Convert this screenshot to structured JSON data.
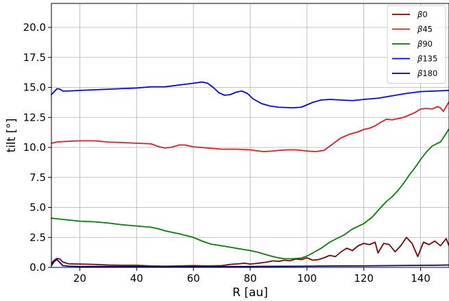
{
  "chart_data": {
    "type": "line",
    "xlabel": "R [au]",
    "ylabel": "tilt [°]",
    "xlim": [
      10,
      150
    ],
    "ylim": [
      0,
      22
    ],
    "xticks": [
      20,
      40,
      60,
      80,
      100,
      120,
      140
    ],
    "xtick_labels": [
      "20",
      "40",
      "60",
      "80",
      "100",
      "120",
      "140"
    ],
    "yticks": [
      0,
      2.5,
      5,
      7.5,
      10,
      12.5,
      15,
      17.5,
      20
    ],
    "ytick_labels": [
      "0.0",
      "2.5",
      "5.0",
      "7.5",
      "10.0",
      "12.5",
      "15.0",
      "17.5",
      "20.0"
    ],
    "grid": true,
    "legend_position": "top-right",
    "series": [
      {
        "name": "β0",
        "color": "#800000",
        "points": [
          [
            10,
            0.35
          ],
          [
            11,
            0.6
          ],
          [
            12,
            0.75
          ],
          [
            13,
            0.7
          ],
          [
            14,
            0.45
          ],
          [
            16,
            0.3
          ],
          [
            20,
            0.28
          ],
          [
            25,
            0.25
          ],
          [
            30,
            0.2
          ],
          [
            35,
            0.18
          ],
          [
            40,
            0.18
          ],
          [
            45,
            0.12
          ],
          [
            50,
            0.1
          ],
          [
            55,
            0.12
          ],
          [
            60,
            0.15
          ],
          [
            65,
            0.12
          ],
          [
            70,
            0.15
          ],
          [
            73,
            0.25
          ],
          [
            76,
            0.3
          ],
          [
            78,
            0.35
          ],
          [
            80,
            0.28
          ],
          [
            83,
            0.35
          ],
          [
            86,
            0.45
          ],
          [
            88,
            0.55
          ],
          [
            90,
            0.5
          ],
          [
            92,
            0.6
          ],
          [
            94,
            0.55
          ],
          [
            96,
            0.7
          ],
          [
            98,
            0.65
          ],
          [
            100,
            0.8
          ],
          [
            102,
            0.6
          ],
          [
            104,
            0.65
          ],
          [
            106,
            0.8
          ],
          [
            108,
            1.0
          ],
          [
            110,
            0.9
          ],
          [
            112,
            1.3
          ],
          [
            114,
            1.6
          ],
          [
            116,
            1.4
          ],
          [
            118,
            1.8
          ],
          [
            120,
            2.0
          ],
          [
            122,
            1.9
          ],
          [
            124,
            2.1
          ],
          [
            125,
            1.2
          ],
          [
            127,
            2.0
          ],
          [
            129,
            1.9
          ],
          [
            131,
            1.3
          ],
          [
            133,
            1.8
          ],
          [
            135,
            2.5
          ],
          [
            137,
            2.0
          ],
          [
            139,
            0.9
          ],
          [
            141,
            2.1
          ],
          [
            143,
            1.9
          ],
          [
            145,
            2.2
          ],
          [
            147,
            1.8
          ],
          [
            149,
            2.4
          ],
          [
            150,
            1.8
          ]
        ]
      },
      {
        "name": "β45",
        "color": "#e41a1c",
        "points": [
          [
            10,
            10.35
          ],
          [
            12,
            10.45
          ],
          [
            15,
            10.5
          ],
          [
            20,
            10.55
          ],
          [
            25,
            10.55
          ],
          [
            30,
            10.45
          ],
          [
            35,
            10.4
          ],
          [
            40,
            10.35
          ],
          [
            45,
            10.3
          ],
          [
            48,
            10.05
          ],
          [
            50,
            9.95
          ],
          [
            52,
            10.0
          ],
          [
            55,
            10.2
          ],
          [
            57,
            10.2
          ],
          [
            60,
            10.05
          ],
          [
            65,
            9.95
          ],
          [
            70,
            9.85
          ],
          [
            75,
            9.85
          ],
          [
            80,
            9.8
          ],
          [
            83,
            9.7
          ],
          [
            85,
            9.65
          ],
          [
            88,
            9.7
          ],
          [
            90,
            9.75
          ],
          [
            93,
            9.8
          ],
          [
            96,
            9.8
          ],
          [
            98,
            9.75
          ],
          [
            100,
            9.7
          ],
          [
            103,
            9.65
          ],
          [
            106,
            9.75
          ],
          [
            108,
            10.1
          ],
          [
            110,
            10.45
          ],
          [
            112,
            10.8
          ],
          [
            115,
            11.1
          ],
          [
            118,
            11.3
          ],
          [
            120,
            11.5
          ],
          [
            122,
            11.6
          ],
          [
            124,
            11.8
          ],
          [
            126,
            12.1
          ],
          [
            128,
            12.35
          ],
          [
            130,
            12.3
          ],
          [
            132,
            12.4
          ],
          [
            134,
            12.5
          ],
          [
            136,
            12.7
          ],
          [
            138,
            12.9
          ],
          [
            140,
            13.2
          ],
          [
            142,
            13.25
          ],
          [
            144,
            13.2
          ],
          [
            146,
            13.4
          ],
          [
            147,
            13.3
          ],
          [
            148,
            13.0
          ],
          [
            150,
            13.8
          ]
        ]
      },
      {
        "name": "β90",
        "color": "#008000",
        "points": [
          [
            10,
            4.1
          ],
          [
            12,
            4.05
          ],
          [
            14,
            4.0
          ],
          [
            16,
            3.95
          ],
          [
            18,
            3.9
          ],
          [
            20,
            3.85
          ],
          [
            25,
            3.8
          ],
          [
            30,
            3.7
          ],
          [
            35,
            3.55
          ],
          [
            40,
            3.45
          ],
          [
            45,
            3.35
          ],
          [
            48,
            3.2
          ],
          [
            50,
            3.05
          ],
          [
            55,
            2.8
          ],
          [
            60,
            2.5
          ],
          [
            63,
            2.2
          ],
          [
            66,
            1.95
          ],
          [
            70,
            1.8
          ],
          [
            75,
            1.6
          ],
          [
            80,
            1.4
          ],
          [
            83,
            1.25
          ],
          [
            85,
            1.1
          ],
          [
            88,
            0.9
          ],
          [
            90,
            0.8
          ],
          [
            92,
            0.72
          ],
          [
            95,
            0.72
          ],
          [
            98,
            0.78
          ],
          [
            100,
            0.95
          ],
          [
            102,
            1.2
          ],
          [
            105,
            1.6
          ],
          [
            108,
            2.1
          ],
          [
            110,
            2.35
          ],
          [
            113,
            2.7
          ],
          [
            116,
            3.2
          ],
          [
            120,
            3.65
          ],
          [
            123,
            4.2
          ],
          [
            126,
            5.0
          ],
          [
            128,
            5.5
          ],
          [
            130,
            5.9
          ],
          [
            132,
            6.4
          ],
          [
            134,
            7.0
          ],
          [
            136,
            7.7
          ],
          [
            138,
            8.3
          ],
          [
            140,
            9.0
          ],
          [
            142,
            9.6
          ],
          [
            144,
            10.1
          ],
          [
            146,
            10.35
          ],
          [
            147,
            10.45
          ],
          [
            148,
            10.8
          ],
          [
            150,
            11.55
          ]
        ]
      },
      {
        "name": "β135",
        "color": "#0000ff",
        "points": [
          [
            10,
            14.4
          ],
          [
            11,
            14.65
          ],
          [
            12,
            14.9
          ],
          [
            13,
            14.85
          ],
          [
            14,
            14.7
          ],
          [
            16,
            14.7
          ],
          [
            20,
            14.75
          ],
          [
            25,
            14.8
          ],
          [
            30,
            14.85
          ],
          [
            35,
            14.9
          ],
          [
            40,
            14.95
          ],
          [
            45,
            15.05
          ],
          [
            50,
            15.05
          ],
          [
            55,
            15.2
          ],
          [
            60,
            15.35
          ],
          [
            63,
            15.45
          ],
          [
            65,
            15.35
          ],
          [
            67,
            15.0
          ],
          [
            69,
            14.55
          ],
          [
            71,
            14.35
          ],
          [
            73,
            14.4
          ],
          [
            75,
            14.6
          ],
          [
            77,
            14.7
          ],
          [
            79,
            14.5
          ],
          [
            81,
            14.05
          ],
          [
            84,
            13.65
          ],
          [
            87,
            13.45
          ],
          [
            90,
            13.35
          ],
          [
            95,
            13.3
          ],
          [
            98,
            13.35
          ],
          [
            100,
            13.55
          ],
          [
            102,
            13.75
          ],
          [
            105,
            13.95
          ],
          [
            108,
            14.0
          ],
          [
            112,
            13.95
          ],
          [
            116,
            13.9
          ],
          [
            120,
            14.0
          ],
          [
            125,
            14.1
          ],
          [
            130,
            14.3
          ],
          [
            135,
            14.5
          ],
          [
            140,
            14.65
          ],
          [
            145,
            14.7
          ],
          [
            150,
            14.75
          ]
        ]
      },
      {
        "name": "β180",
        "color": "#00008b",
        "points": [
          [
            10,
            0.15
          ],
          [
            11,
            0.5
          ],
          [
            12,
            0.65
          ],
          [
            13,
            0.4
          ],
          [
            14,
            0.15
          ],
          [
            16,
            0.1
          ],
          [
            20,
            0.08
          ],
          [
            30,
            0.08
          ],
          [
            40,
            0.07
          ],
          [
            50,
            0.06
          ],
          [
            60,
            0.06
          ],
          [
            70,
            0.07
          ],
          [
            80,
            0.08
          ],
          [
            90,
            0.09
          ],
          [
            100,
            0.1
          ],
          [
            110,
            0.12
          ],
          [
            120,
            0.13
          ],
          [
            130,
            0.15
          ],
          [
            140,
            0.17
          ],
          [
            145,
            0.18
          ],
          [
            150,
            0.2
          ]
        ]
      }
    ]
  }
}
